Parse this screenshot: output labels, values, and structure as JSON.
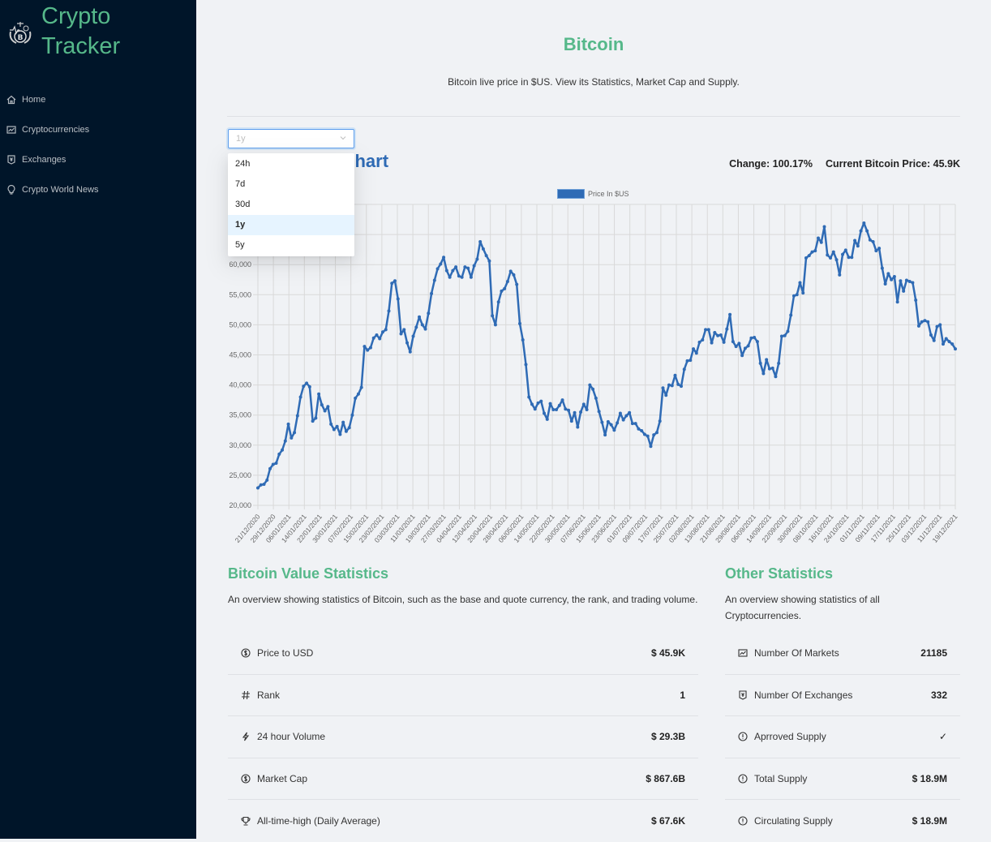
{
  "sidebar": {
    "logo_line1": "Crypto",
    "logo_line2": "Tracker",
    "logo_icon": "bitcoin-emblem-icon",
    "items": [
      {
        "label": "Home",
        "icon": "home-icon"
      },
      {
        "label": "Cryptocurrencies",
        "icon": "line-chart-icon"
      },
      {
        "label": "Exchanges",
        "icon": "money-collect-icon"
      },
      {
        "label": "Crypto World News",
        "icon": "bulb-icon"
      }
    ]
  },
  "header": {
    "title": "Bitcoin",
    "subtitle": "Bitcoin live price in $US. View its Statistics, Market Cap and Supply."
  },
  "time_select": {
    "value": "1y",
    "options": [
      "24h",
      "7d",
      "30d",
      "1y",
      "5y"
    ],
    "selected_index": 3
  },
  "chart_header": {
    "title": "Bitcoin Price Chart",
    "change": "Change: 100.17%",
    "current_price": "Current Bitcoin Price: 45.9K"
  },
  "chart_data": {
    "type": "line",
    "title": "",
    "legend": [
      "Price In $US"
    ],
    "legend_position": "top",
    "xlabel": "",
    "ylabel": "",
    "ylim": [
      20000,
      70000
    ],
    "yticks": [
      20000,
      25000,
      30000,
      35000,
      40000,
      45000,
      50000,
      55000,
      60000
    ],
    "ytick_labels": [
      "20,000",
      "25,000",
      "30,000",
      "35,000",
      "40,000",
      "45,000",
      "50,000",
      "55,000",
      "60,000"
    ],
    "grid": true,
    "color": "#2f6bb5",
    "x_tick_labels": [
      "21/12/2020",
      "29/12/2020",
      "06/01/2021",
      "14/01/2021",
      "22/01/2021",
      "30/01/2021",
      "07/02/2021",
      "15/02/2021",
      "23/02/2021",
      "03/03/2021",
      "11/03/2021",
      "19/03/2021",
      "27/03/2021",
      "04/04/2021",
      "12/04/2021",
      "20/04/2021",
      "28/04/2021",
      "06/05/2021",
      "14/05/2021",
      "22/05/2021",
      "30/05/2021",
      "07/06/2021",
      "15/06/2021",
      "23/06/2021",
      "01/07/2021",
      "09/07/2021",
      "17/07/2021",
      "25/07/2021",
      "02/08/2021",
      "13/08/2021",
      "21/08/2021",
      "29/08/2021",
      "06/09/2021",
      "14/09/2021",
      "22/09/2021",
      "30/09/2021",
      "08/10/2021",
      "16/10/2021",
      "24/10/2021",
      "01/11/2021",
      "09/11/2021",
      "17/11/2021",
      "25/11/2021",
      "03/12/2021",
      "11/12/2021",
      "19/12/2021"
    ],
    "series": [
      {
        "name": "Price In $US",
        "values": [
          22900,
          23400,
          23500,
          24200,
          26100,
          26800,
          27000,
          28500,
          29200,
          30700,
          33500,
          31200,
          32100,
          34900,
          38000,
          39800,
          40300,
          39700,
          34000,
          34500,
          38500,
          36700,
          35700,
          36400,
          33500,
          32600,
          33100,
          31800,
          33800,
          32300,
          32900,
          35000,
          37800,
          38500,
          39600,
          46400,
          45800,
          46200,
          47800,
          48300,
          47700,
          48800,
          49200,
          52300,
          56900,
          57300,
          54300,
          48500,
          49200,
          47000,
          45500,
          48100,
          49600,
          51300,
          50000,
          49300,
          51900,
          55200,
          57400,
          59300,
          60100,
          61200,
          59000,
          57900,
          59000,
          59600,
          58100,
          57900,
          59600,
          59400,
          57900,
          59800,
          60900,
          63800,
          62600,
          61500,
          60600,
          51500,
          50000,
          53800,
          55600,
          56000,
          57200,
          58900,
          58300,
          56700,
          50200,
          47500,
          43400,
          38000,
          36800,
          36000,
          37000,
          37300,
          35300,
          34300,
          36900,
          35900,
          35900,
          36600,
          37500,
          36000,
          35800,
          34000,
          35400,
          33000,
          35500,
          36800,
          35900,
          40000,
          39300,
          37800,
          35600,
          33800,
          31700,
          33900,
          33400,
          32500,
          33700,
          35300,
          34200,
          34900,
          35400,
          33600,
          33600,
          32700,
          32400,
          31800,
          31500,
          29800,
          31700,
          32100,
          34000,
          39500,
          38300,
          40000,
          39900,
          41600,
          40100,
          39800,
          42600,
          44000,
          44100,
          46000,
          45300,
          47100,
          47500,
          49200,
          49200,
          47000,
          48700,
          48200,
          48300,
          47100,
          49300,
          51700,
          47200,
          46400,
          46900,
          44900,
          46100,
          46500,
          47800,
          47900,
          47200,
          43600,
          41900,
          44200,
          42700,
          42800,
          41400,
          43600,
          48100,
          48200,
          48900,
          51600,
          54800,
          55000,
          57000,
          55300,
          61100,
          61500,
          62100,
          62300,
          64400,
          63700,
          66300,
          61600,
          61100,
          62100,
          60800,
          58300,
          61700,
          62400,
          61200,
          61200,
          64000,
          63100,
          65600,
          66900,
          65600,
          64100,
          63800,
          62300,
          62700,
          59400,
          56800,
          58500,
          57500,
          58000,
          53800,
          57300,
          55600,
          57400,
          57200,
          57000,
          54100,
          49800,
          50500,
          50700,
          50500,
          48300,
          47400,
          49700,
          50000,
          46800,
          47700,
          47200,
          46800,
          46000
        ]
      }
    ]
  },
  "value_stats": {
    "title": "Bitcoin Value Statistics",
    "description": "An overview showing statistics of Bitcoin, such as the base and quote currency, the rank, and trading volume.",
    "rows": [
      {
        "label": "Price to USD",
        "value": "$ 45.9K",
        "icon": "dollar-circle-icon"
      },
      {
        "label": "Rank",
        "value": "1",
        "icon": "number-icon"
      },
      {
        "label": "24 hour Volume",
        "value": "$ 29.3B",
        "icon": "thunderbolt-icon"
      },
      {
        "label": "Market Cap",
        "value": "$ 867.6B",
        "icon": "dollar-circle-icon"
      },
      {
        "label": "All-time-high (Daily Average)",
        "value": "$ 67.6K",
        "icon": "trophy-icon"
      }
    ]
  },
  "other_stats": {
    "title": "Other Statistics",
    "description": "An overview showing statistics of all Cryptocurrencies.",
    "rows": [
      {
        "label": "Number Of Markets",
        "value": "21185",
        "icon": "fund-icon"
      },
      {
        "label": "Number Of Exchanges",
        "value": "332",
        "icon": "money-collect-icon"
      },
      {
        "label": "Aprroved Supply",
        "value": "✓",
        "icon": "exclamation-circle-icon"
      },
      {
        "label": "Total Supply",
        "value": "$ 18.9M",
        "icon": "exclamation-circle-icon"
      },
      {
        "label": "Circulating Supply",
        "value": "$ 18.9M",
        "icon": "exclamation-circle-icon"
      }
    ]
  }
}
